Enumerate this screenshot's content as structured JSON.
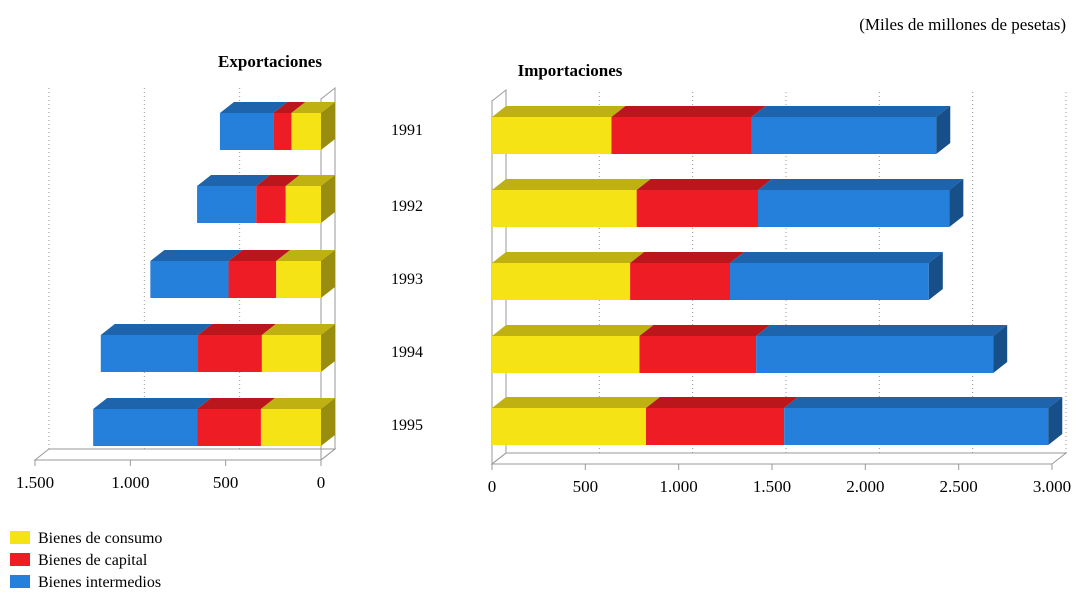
{
  "unit_note": "(Miles de millones de pesetas)",
  "colors": {
    "consumo": "#f5e316",
    "capital": "#ee1c24",
    "intermedios": "#2580dc"
  },
  "legend": [
    {
      "label": "Bienes de consumo",
      "color": "#f5e316"
    },
    {
      "label": "Bienes de capital",
      "color": "#ee1c24"
    },
    {
      "label": "Bienes intermedios",
      "color": "#2580dc"
    }
  ],
  "chart_data": [
    {
      "type": "bar",
      "orientation": "horizontal",
      "stacked": true,
      "direction": "reversed",
      "title": "Exportaciones",
      "categories": [
        "1991",
        "1992",
        "1993",
        "1994",
        "1995"
      ],
      "series": [
        {
          "name": "Bienes de consumo",
          "values": [
            155,
            185,
            235,
            310,
            315
          ]
        },
        {
          "name": "Bienes de capital",
          "values": [
            95,
            155,
            250,
            335,
            335
          ]
        },
        {
          "name": "Bienes intermedios",
          "values": [
            280,
            310,
            410,
            510,
            545
          ]
        }
      ],
      "xlim": [
        0,
        1500
      ],
      "ticks": [
        "1.500",
        "1.000",
        "500",
        "0"
      ],
      "tick_values": [
        1500,
        1000,
        500,
        0
      ],
      "grid": true
    },
    {
      "type": "bar",
      "orientation": "horizontal",
      "stacked": true,
      "title": "Importaciones",
      "categories": [
        "1991",
        "1992",
        "1993",
        "1994",
        "1995"
      ],
      "series": [
        {
          "name": "Bienes de consumo",
          "values": [
            640,
            775,
            740,
            790,
            825
          ]
        },
        {
          "name": "Bienes de capital",
          "values": [
            750,
            650,
            535,
            625,
            740
          ]
        },
        {
          "name": "Bienes intermedios",
          "values": [
            990,
            1025,
            1065,
            1270,
            1415
          ]
        }
      ],
      "xlim": [
        0,
        3000
      ],
      "ticks": [
        "0",
        "500",
        "1.000",
        "1.500",
        "2.000",
        "2.500",
        "3.000"
      ],
      "tick_values": [
        0,
        500,
        1000,
        1500,
        2000,
        2500,
        3000
      ],
      "grid": true
    }
  ]
}
